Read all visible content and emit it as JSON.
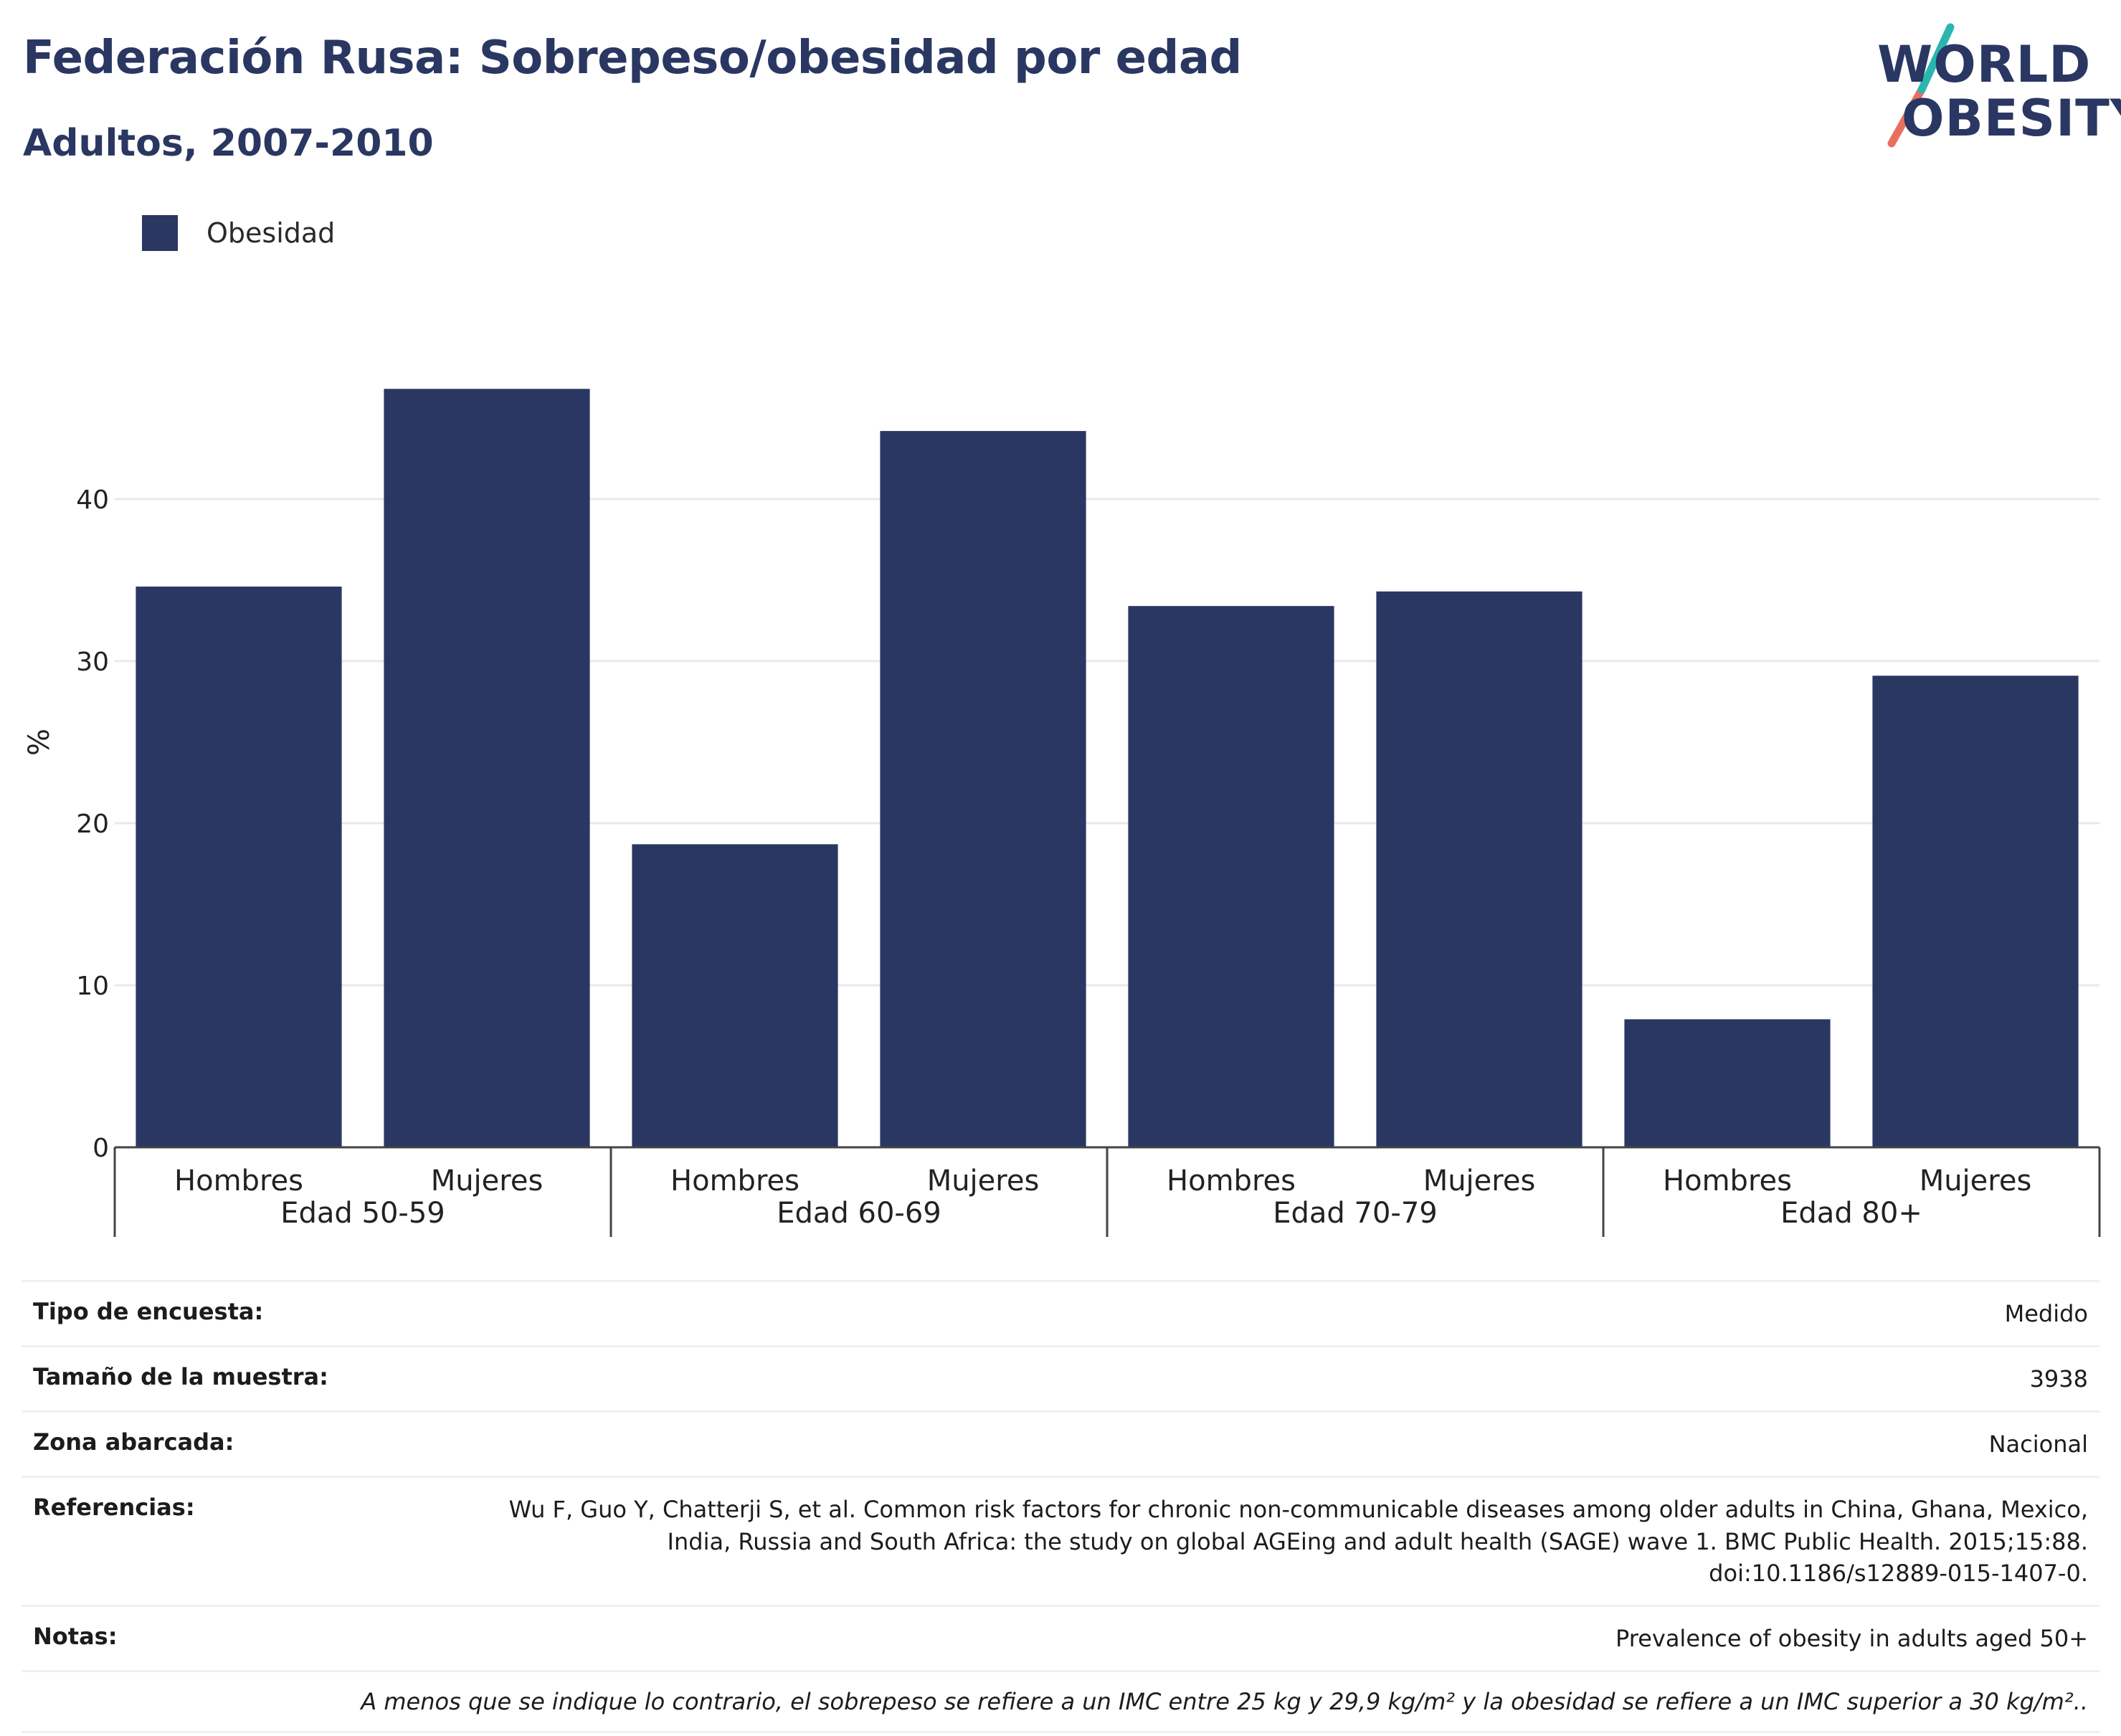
{
  "header": {
    "title": "Federación Rusa: Sobrepeso/obesidad por edad",
    "subtitle": "Adultos, 2007-2010"
  },
  "logo": {
    "line1": "WORLD",
    "line2": "OBESITY",
    "accent_teal": "#2bb5b0",
    "accent_coral": "#e8705f"
  },
  "chart_data": {
    "type": "bar",
    "ylabel": "%",
    "ylim": [
      0,
      50
    ],
    "yticks": [
      0,
      10,
      20,
      30,
      40
    ],
    "grid": true,
    "legend_position": "top-left",
    "bar_color": "#2a3762",
    "groups": [
      "Edad 50-59",
      "Edad 60-69",
      "Edad 70-79",
      "Edad 80+"
    ],
    "subcategories": [
      "Hombres",
      "Mujeres"
    ],
    "series": [
      {
        "name": "Obesidad",
        "values": [
          34.6,
          46.8,
          18.7,
          44.2,
          33.4,
          34.3,
          7.9,
          29.1
        ]
      }
    ]
  },
  "info": [
    {
      "key": "Tipo de encuesta:",
      "lines": [
        "Medido"
      ]
    },
    {
      "key": "Tamaño de la muestra:",
      "lines": [
        "3938"
      ]
    },
    {
      "key": "Zona abarcada:",
      "lines": [
        "Nacional"
      ]
    },
    {
      "key": "Referencias:",
      "lines": [
        "Wu F, Guo Y, Chatterji S, et al. Common risk factors for chronic non-communicable diseases among older adults in China, Ghana, Mexico,",
        "India, Russia and South Africa: the study on global AGEing and adult health (SAGE) wave 1. BMC Public Health. 2015;15:88.",
        "doi:10.1186/s12889-015-1407-0."
      ]
    },
    {
      "key": "Notas:",
      "lines": [
        "Prevalence of obesity in adults aged 50+"
      ]
    }
  ],
  "footnote": "A menos que se indique lo contrario, el sobrepeso se refiere a un IMC entre 25 kg y 29,9 kg/m² y la obesidad se refiere a un IMC superior a 30 kg/m².."
}
